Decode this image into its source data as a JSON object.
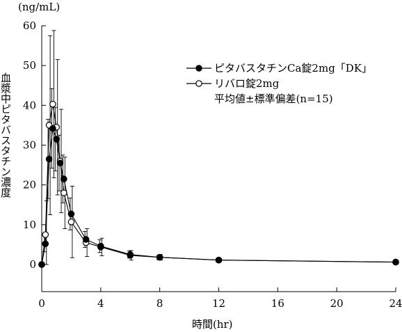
{
  "chart_data": {
    "type": "line",
    "unit_label": "(ng/mL)",
    "ylabel": "血漿中ピタバスタチン濃度",
    "xlabel": "時間(hr)",
    "xlim": [
      0,
      24
    ],
    "ylim": [
      0,
      60
    ],
    "x_ticks": [
      0,
      4,
      8,
      12,
      16,
      20,
      24
    ],
    "y_ticks": [
      0,
      10,
      20,
      30,
      40,
      50,
      60
    ],
    "legend_note": "平均値±標準偏差(n=15)",
    "series": [
      {
        "name": "ピタバスタチンCa錠2mg「DK」",
        "marker": "filled-circle",
        "x": [
          0,
          0.25,
          0.5,
          0.75,
          1.0,
          1.25,
          1.5,
          2,
          3,
          4,
          6,
          8,
          12,
          24
        ],
        "y": [
          0,
          5.2,
          26.5,
          34.2,
          31.5,
          25.5,
          21.5,
          12.7,
          6.3,
          4.6,
          2.5,
          1.8,
          1.1,
          0.6
        ],
        "sd": [
          0,
          2.0,
          10.0,
          10.0,
          8.0,
          7.0,
          6.0,
          4.0,
          2.0,
          1.6,
          0.9,
          0.6,
          0.4,
          0.3
        ]
      },
      {
        "name": "リバロ錠2mg",
        "marker": "open-circle",
        "x": [
          0,
          0.25,
          0.5,
          0.75,
          1.0,
          1.25,
          1.5,
          2,
          3,
          4,
          6,
          8,
          12,
          24
        ],
        "y": [
          0,
          7.5,
          35.0,
          40.3,
          34.5,
          26.0,
          18.0,
          10.7,
          5.5,
          4.4,
          2.3,
          1.8,
          1.1,
          0.6
        ],
        "sd": [
          0,
          8.5,
          22.5,
          18.5,
          17.0,
          13.0,
          9.0,
          9.0,
          3.5,
          2.2,
          1.2,
          0.7,
          0.4,
          0.3
        ]
      }
    ]
  }
}
